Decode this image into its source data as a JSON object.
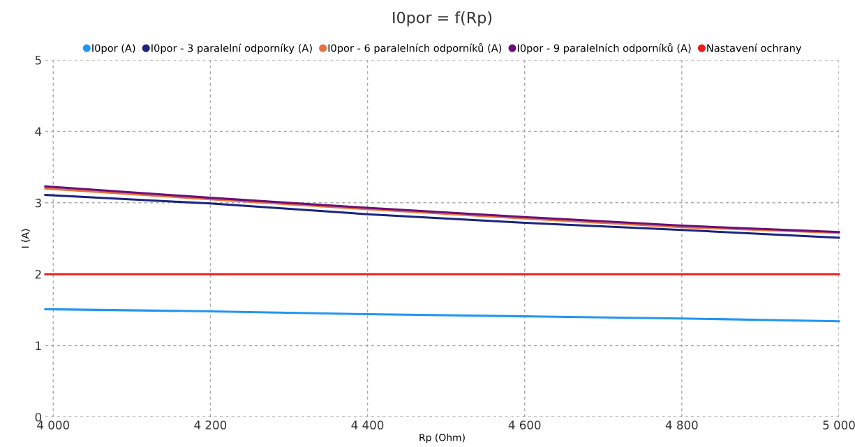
{
  "chart_data": {
    "type": "line",
    "title": "I0por = f(Rp)",
    "xlabel": "Rp (Ohm)",
    "ylabel": "I (A)",
    "x": [
      3990,
      4200,
      4400,
      4600,
      4800,
      5000
    ],
    "series": [
      {
        "name": "I0por (A)",
        "color": "#2196f3",
        "values": [
          1.51,
          1.48,
          1.44,
          1.41,
          1.38,
          1.34
        ]
      },
      {
        "name": "I0por - 3 paralelní odporníky (A)",
        "color": "#1a237e",
        "values": [
          3.11,
          2.99,
          2.84,
          2.72,
          2.62,
          2.51
        ]
      },
      {
        "name": "I0por - 6 paralelních odporníků (A)",
        "color": "#e8703a",
        "values": [
          3.2,
          3.05,
          2.91,
          2.78,
          2.66,
          2.58
        ]
      },
      {
        "name": "I0por - 9 paralelních odporníků (A)",
        "color": "#6a0f7a",
        "values": [
          3.23,
          3.07,
          2.93,
          2.8,
          2.68,
          2.59
        ]
      },
      {
        "name": "Nastavení ochrany",
        "color": "#ee1c1c",
        "values": [
          2,
          2,
          2,
          2,
          2,
          2
        ]
      }
    ],
    "xlim": [
      3990,
      5000
    ],
    "ylim": [
      0,
      5
    ],
    "xticks": [
      {
        "value": 4000,
        "label": "4 000"
      },
      {
        "value": 4200,
        "label": "4 200"
      },
      {
        "value": 4400,
        "label": "4 400"
      },
      {
        "value": 4600,
        "label": "4 600"
      },
      {
        "value": 4800,
        "label": "4 800"
      },
      {
        "value": 5000,
        "label": "5 000"
      }
    ],
    "yticks": [
      0,
      1,
      2,
      3,
      4,
      5
    ],
    "grid": true,
    "legend": "top",
    "line_style": "solid",
    "marker": "none"
  }
}
